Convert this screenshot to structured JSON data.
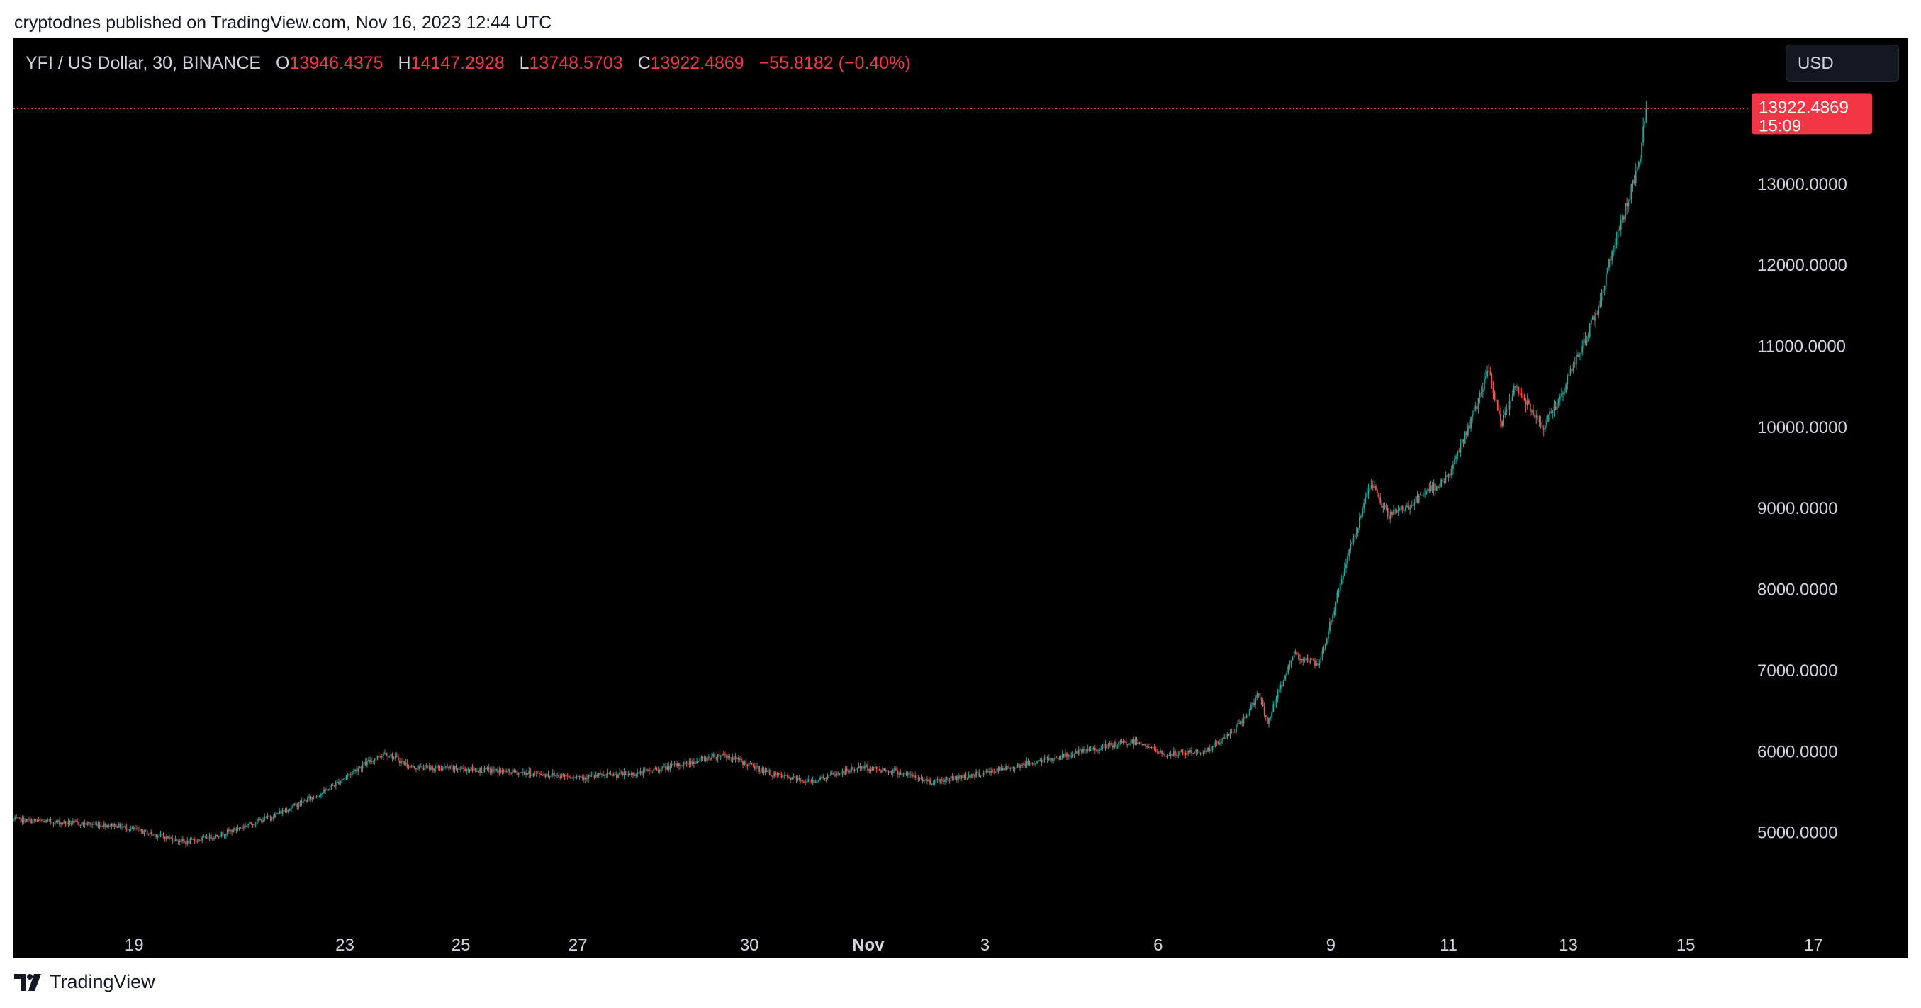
{
  "header": {
    "published_text": "cryptodnes published on TradingView.com, Nov 16, 2023 12:44 UTC"
  },
  "legend": {
    "symbol": "YFI / US Dollar, 30, BINANCE",
    "open_label": "O",
    "open": "13946.4375",
    "high_label": "H",
    "high": "14147.2928",
    "low_label": "L",
    "low": "13748.5703",
    "close_label": "C",
    "close": "13922.4869",
    "change": "−55.8182 (−0.40%)"
  },
  "currency": {
    "label": "USD"
  },
  "price_tag": {
    "price": "13922.4869",
    "countdown": "15:09"
  },
  "footer": {
    "brand": "TradingView"
  },
  "colors": {
    "background": "#000000",
    "up": "#26a69a",
    "down": "#ef5350",
    "price_tag": "#f23645",
    "axis_text": "#d1d4dc"
  },
  "chart_data": {
    "type": "candlestick",
    "interval": "30",
    "y_axis_side": "right",
    "ylim": [
      4000,
      14800
    ],
    "y_ticks": [
      5000,
      6000,
      7000,
      8000,
      9000,
      10000,
      11000,
      12000,
      13000
    ],
    "y_tick_labels": [
      "5000.0000",
      "6000.0000",
      "7000.0000",
      "8000.0000",
      "9000.0000",
      "10000.0000",
      "11000.0000",
      "12000.0000",
      "13000.0000"
    ],
    "x_tick_labels": [
      "19",
      "23",
      "25",
      "27",
      "30",
      "Nov",
      "3",
      "6",
      "9",
      "11",
      "13",
      "15",
      "17"
    ],
    "x_tick_positions": [
      0.0637,
      0.1749,
      0.2361,
      0.2979,
      0.3884,
      0.4511,
      0.5127,
      0.6041,
      0.6952,
      0.7574,
      0.8206,
      0.8826,
      0.95
    ],
    "last_price": 13922.4869,
    "trend_anchors": [
      [
        0.0,
        5150
      ],
      [
        0.06,
        5080
      ],
      [
        0.085,
        4950
      ],
      [
        0.1,
        4870
      ],
      [
        0.12,
        4970
      ],
      [
        0.15,
        5200
      ],
      [
        0.18,
        5500
      ],
      [
        0.2,
        5800
      ],
      [
        0.215,
        5980
      ],
      [
        0.23,
        5800
      ],
      [
        0.26,
        5780
      ],
      [
        0.3,
        5720
      ],
      [
        0.33,
        5680
      ],
      [
        0.36,
        5720
      ],
      [
        0.39,
        5850
      ],
      [
        0.41,
        5960
      ],
      [
        0.44,
        5700
      ],
      [
        0.46,
        5620
      ],
      [
        0.49,
        5800
      ],
      [
        0.51,
        5750
      ],
      [
        0.53,
        5620
      ],
      [
        0.56,
        5720
      ],
      [
        0.59,
        5860
      ],
      [
        0.61,
        5950
      ],
      [
        0.63,
        6050
      ],
      [
        0.65,
        6120
      ],
      [
        0.665,
        5950
      ],
      [
        0.69,
        6000
      ],
      [
        0.7,
        6150
      ],
      [
        0.71,
        6350
      ],
      [
        0.72,
        6700
      ],
      [
        0.725,
        6350
      ],
      [
        0.74,
        7200
      ],
      [
        0.755,
        7050
      ],
      [
        0.77,
        8300
      ],
      [
        0.785,
        9300
      ],
      [
        0.795,
        8900
      ],
      [
        0.805,
        9000
      ],
      [
        0.815,
        9150
      ],
      [
        0.83,
        9400
      ],
      [
        0.845,
        10200
      ],
      [
        0.853,
        10700
      ],
      [
        0.86,
        10000
      ],
      [
        0.868,
        10500
      ],
      [
        0.875,
        10300
      ],
      [
        0.885,
        10000
      ],
      [
        0.895,
        10400
      ],
      [
        0.905,
        10900
      ],
      [
        0.915,
        11400
      ],
      [
        0.925,
        12200
      ],
      [
        0.935,
        12900
      ],
      [
        0.94,
        13300
      ],
      [
        0.944,
        13922
      ]
    ]
  }
}
